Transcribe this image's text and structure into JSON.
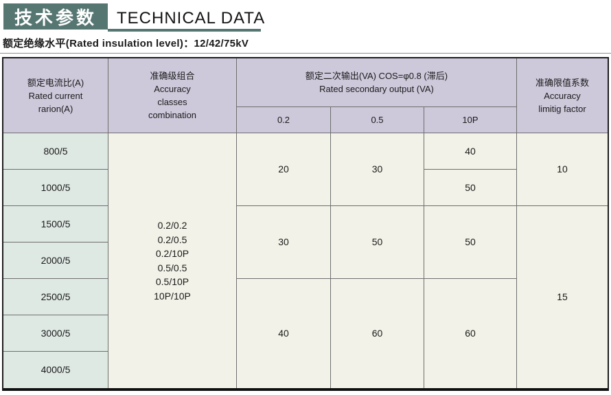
{
  "title": {
    "zh": "技术参数",
    "en": "TECHNICAL DATA"
  },
  "subtitle": "额定绝缘水平(Rated insulation level)：12/42/75kV",
  "colors": {
    "title_block_bg": "#567672",
    "title_text": "#ffffff",
    "header_bg": "#cdc8da",
    "ratio_column_bg": "#dfe9e4",
    "body_cell_bg": "#f2f2e8",
    "grid_line": "#6e6e6e",
    "outer_border": "#1c1c1c"
  },
  "table": {
    "headers": {
      "current_ratio": {
        "line1": "额定电流比(A)",
        "line2": "Rated current",
        "line3": "rarion(A)"
      },
      "accuracy_classes": {
        "line1": "准确级组合",
        "line2": "Accuracy",
        "line3": "classes",
        "line4": "combination"
      },
      "secondary_output": {
        "line1": "额定二次输出(VA) COS=φ0.8 (滞后)",
        "line2": "Rated secondary output (VA)"
      },
      "sub_columns": [
        "0.2",
        "0.5",
        "10P"
      ],
      "accuracy_limit": {
        "line1": "准确限值系数",
        "line2": "Accuracy",
        "line3": "limitig factor"
      }
    },
    "current_ratios": [
      "800/5",
      "1000/5",
      "1500/5",
      "2000/5",
      "2500/5",
      "3000/5",
      "4000/5"
    ],
    "accuracy_combinations": [
      "0.2/0.2",
      "0.2/0.5",
      "0.2/10P",
      "0.5/0.5",
      "0.5/10P",
      "10P/10P"
    ],
    "output_values": {
      "class_02": [
        "20",
        "30",
        "40"
      ],
      "class_05": [
        "30",
        "50",
        "60"
      ],
      "class_10p": [
        "40",
        "50",
        "50",
        "60"
      ]
    },
    "accuracy_limit_values": [
      "10",
      "15"
    ]
  }
}
